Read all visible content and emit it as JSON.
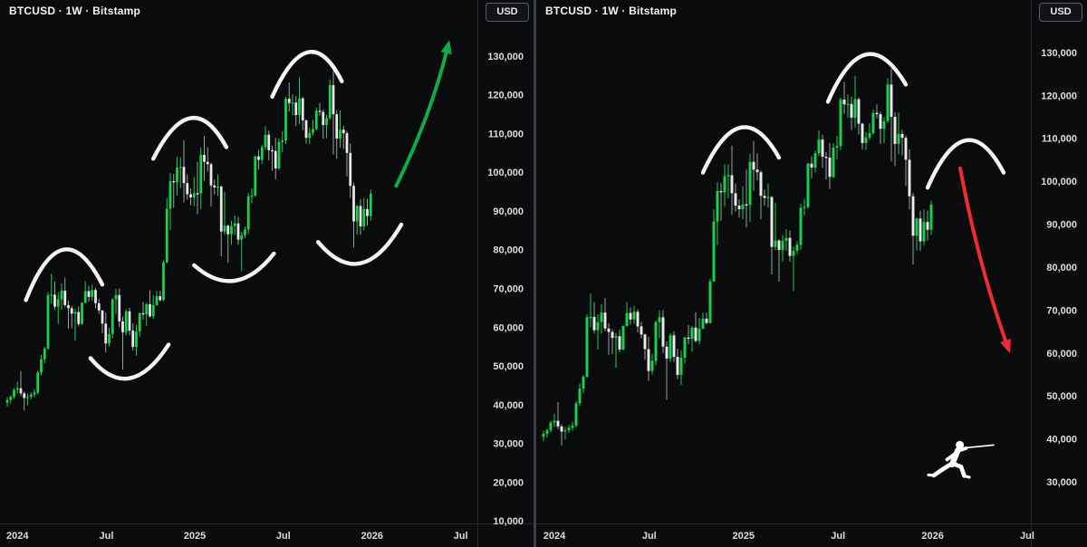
{
  "panels": [
    {
      "title": "BTCUSD · 1W · Bitstamp",
      "currency_label": "USD"
    },
    {
      "title": "BTCUSD · 1W · Bitstamp",
      "currency_label": "USD"
    }
  ],
  "colors": {
    "background": "#0a0b0c",
    "candle_up": "#16d24c",
    "candle_down": "#e9e9e9",
    "wick_down": "#9aa0a6",
    "annotation_white": "#f4f4f4",
    "arrow_up": "#0dab4a",
    "arrow_down": "#ef2b33",
    "axis_text": "#dcdee2",
    "axis_line": "#24262b",
    "divider": "#3c4046",
    "logo_white": "#ffffff"
  },
  "chart_data": {
    "type": "candlestick",
    "symbol": "BTCUSD",
    "interval": "1W",
    "exchange": "Bitstamp",
    "currency": "USD",
    "description": "Two side-by-side weekly BTCUSD candlestick panes with hand-drawn white arc (rounded top/bottom) pattern annotations; left pane shows a bullish green projection arrow, right pane shows a bearish red projection arrow and a white fencer logo.",
    "candles_ohlc_usd": [
      [
        40500,
        41900,
        39500,
        41200
      ],
      [
        41200,
        42400,
        40300,
        42000
      ],
      [
        42000,
        44200,
        41500,
        43800
      ],
      [
        43800,
        45900,
        42800,
        44200
      ],
      [
        44200,
        48600,
        42200,
        42900
      ],
      [
        42900,
        43400,
        38500,
        41700
      ],
      [
        41700,
        42800,
        39900,
        42000
      ],
      [
        42000,
        43200,
        41400,
        42600
      ],
      [
        42600,
        44000,
        41900,
        43100
      ],
      [
        43100,
        48800,
        42600,
        48300
      ],
      [
        48300,
        52900,
        47600,
        51700
      ],
      [
        51700,
        54900,
        50600,
        54500
      ],
      [
        54500,
        69000,
        54200,
        68300
      ],
      [
        68300,
        73800,
        66000,
        68400
      ],
      [
        68400,
        71800,
        64500,
        65300
      ],
      [
        65300,
        69000,
        60800,
        67200
      ],
      [
        67200,
        71300,
        64500,
        69400
      ],
      [
        69400,
        72800,
        65100,
        65700
      ],
      [
        65700,
        66900,
        59600,
        64900
      ],
      [
        64900,
        65500,
        59700,
        63500
      ],
      [
        63500,
        64700,
        56500,
        63900
      ],
      [
        63900,
        65400,
        60200,
        60800
      ],
      [
        60800,
        66400,
        60600,
        66300
      ],
      [
        66300,
        71900,
        66100,
        69300
      ],
      [
        69300,
        70600,
        66600,
        67800
      ],
      [
        67800,
        71000,
        66800,
        69600
      ],
      [
        69600,
        70200,
        64800,
        66200
      ],
      [
        66200,
        67300,
        63400,
        64300
      ],
      [
        64300,
        64500,
        58400,
        60900
      ],
      [
        60900,
        63800,
        53500,
        55800
      ],
      [
        55800,
        59800,
        55000,
        58200
      ],
      [
        58200,
        67500,
        57100,
        67200
      ],
      [
        67200,
        69900,
        63400,
        68300
      ],
      [
        68300,
        70000,
        60000,
        61500
      ],
      [
        61500,
        62700,
        49100,
        58700
      ],
      [
        58700,
        64600,
        57900,
        64100
      ],
      [
        64100,
        65000,
        57900,
        59100
      ],
      [
        59100,
        61000,
        53900,
        54900
      ],
      [
        54900,
        60600,
        52600,
        58900
      ],
      [
        58900,
        63800,
        57500,
        63600
      ],
      [
        63600,
        66500,
        62000,
        63300
      ],
      [
        63300,
        66300,
        60300,
        65900
      ],
      [
        65900,
        69500,
        62400,
        62800
      ],
      [
        62800,
        68200,
        62100,
        65700
      ],
      [
        65700,
        69400,
        65500,
        68000
      ],
      [
        68000,
        69400,
        66600,
        67000
      ],
      [
        67000,
        77300,
        66800,
        76700
      ],
      [
        76700,
        93400,
        76500,
        90600
      ],
      [
        90600,
        99800,
        85100,
        97700
      ],
      [
        97700,
        99600,
        90800,
        97400
      ],
      [
        97400,
        104000,
        94000,
        101200
      ],
      [
        101200,
        103900,
        96000,
        101400
      ],
      [
        101400,
        108300,
        92200,
        97200
      ],
      [
        97200,
        99500,
        92900,
        94300
      ],
      [
        94300,
        95800,
        91500,
        93500
      ],
      [
        93500,
        98800,
        91200,
        94600
      ],
      [
        94600,
        102700,
        89200,
        94500
      ],
      [
        94500,
        106400,
        90500,
        104500
      ],
      [
        104500,
        109400,
        97800,
        102700
      ],
      [
        102700,
        106500,
        100200,
        102100
      ],
      [
        102100,
        102500,
        91200,
        96600
      ],
      [
        96600,
        98100,
        94300,
        96100
      ],
      [
        96100,
        99500,
        93900,
        96300
      ],
      [
        96300,
        96600,
        78300,
        84700
      ],
      [
        84700,
        95000,
        83900,
        86200
      ],
      [
        86200,
        86500,
        76600,
        84000
      ],
      [
        84000,
        87500,
        81300,
        86100
      ],
      [
        86100,
        88800,
        83800,
        86800
      ],
      [
        86800,
        88500,
        81300,
        82600
      ],
      [
        82600,
        84700,
        74400,
        83800
      ],
      [
        83800,
        86000,
        83000,
        85200
      ],
      [
        85200,
        94700,
        84000,
        93800
      ],
      [
        93800,
        95900,
        92000,
        94000
      ],
      [
        94000,
        104300,
        93600,
        104100
      ],
      [
        104100,
        105800,
        100700,
        103200
      ],
      [
        103200,
        107100,
        102100,
        106500
      ],
      [
        106500,
        111900,
        105800,
        109700
      ],
      [
        109700,
        110800,
        103100,
        105700
      ],
      [
        105700,
        106800,
        100400,
        105500
      ],
      [
        105500,
        108900,
        98200,
        101000
      ],
      [
        101000,
        108800,
        100700,
        107800
      ],
      [
        107800,
        110600,
        105100,
        108200
      ],
      [
        108200,
        119500,
        107300,
        119000
      ],
      [
        119000,
        123200,
        115700,
        117900
      ],
      [
        117900,
        120200,
        114800,
        118000
      ],
      [
        118000,
        119700,
        111900,
        114800
      ],
      [
        114800,
        124500,
        112400,
        119100
      ],
      [
        119100,
        119500,
        110900,
        113400
      ],
      [
        113400,
        113600,
        107400,
        108900
      ],
      [
        108900,
        111500,
        107300,
        110200
      ],
      [
        110200,
        113500,
        109600,
        111200
      ],
      [
        111200,
        116700,
        110800,
        115900
      ],
      [
        115900,
        117900,
        114600,
        115600
      ],
      [
        115600,
        116200,
        108700,
        112200
      ],
      [
        112200,
        114900,
        108800,
        114000
      ],
      [
        114000,
        124000,
        113600,
        122500
      ],
      [
        122500,
        126200,
        104600,
        115000
      ],
      [
        115000,
        116100,
        103500,
        108700
      ],
      [
        108700,
        116000,
        106300,
        111000
      ],
      [
        111000,
        112000,
        106000,
        110100
      ],
      [
        110100,
        110700,
        98900,
        105000
      ],
      [
        105000,
        107400,
        93400,
        96500
      ],
      [
        96500,
        97300,
        80600,
        87300
      ],
      [
        87300,
        91500,
        83900,
        91300
      ],
      [
        91300,
        93100,
        83800,
        86000
      ],
      [
        86000,
        93400,
        85000,
        90500
      ],
      [
        90500,
        93200,
        86200,
        88700
      ],
      [
        88700,
        95500,
        87500,
        94500
      ]
    ],
    "panels": [
      {
        "id": "bullish-scenario",
        "ylim_usd": [
          9300,
          144500
        ],
        "xlim_weeks": [
          -2.13,
          138.4
        ],
        "price_ticks": [
          130000,
          120000,
          110000,
          100000,
          90000,
          80000,
          70000,
          60000,
          50000,
          40000,
          30000,
          20000,
          10000
        ],
        "time_ticks": [
          {
            "week": 3,
            "label": "2024"
          },
          {
            "week": 29.2,
            "label": "Jul"
          },
          {
            "week": 55.2,
            "label": "2025"
          },
          {
            "week": 81.3,
            "label": "Jul"
          },
          {
            "week": 107.4,
            "label": "2026"
          },
          {
            "week": 133.5,
            "label": "Jul"
          }
        ],
        "annotations": [
          {
            "name": "top-arc-2024",
            "type": "arc",
            "from": [
              5.5,
              67000
            ],
            "apex": [
              16.5,
              80000
            ],
            "to": [
              28,
              71000
            ]
          },
          {
            "name": "bottom-arc-2024",
            "type": "arc",
            "from": [
              24.5,
              52000
            ],
            "apex": [
              36,
              46800
            ],
            "to": [
              47.5,
              55500
            ]
          },
          {
            "name": "top-arc-early-2025",
            "type": "arc",
            "from": [
              43,
              103500
            ],
            "apex": [
              54,
              114000
            ],
            "to": [
              64.5,
              106500
            ]
          },
          {
            "name": "bottom-arc-2025",
            "type": "arc",
            "from": [
              55,
              76000
            ],
            "apex": [
              67,
              72000
            ],
            "to": [
              78.5,
              79000
            ]
          },
          {
            "name": "top-arc-late-2025",
            "type": "arc",
            "from": [
              78,
              119500
            ],
            "apex": [
              88.5,
              131000
            ],
            "to": [
              98.5,
              123500
            ]
          },
          {
            "name": "bottom-arc-late-2025",
            "type": "arc",
            "from": [
              91.5,
              82000
            ],
            "apex": [
              104,
              76500
            ],
            "to": [
              116,
              86500
            ]
          },
          {
            "name": "bullish-projection-arrow",
            "type": "arrow",
            "color_key": "arrow_up",
            "from": [
              114.5,
              96500
            ],
            "to": [
              130,
              133500
            ],
            "bend": 9
          }
        ]
      },
      {
        "id": "bearish-scenario",
        "ylim_usd": [
          20300,
          142200
        ],
        "xlim_weeks": [
          -2,
          134.5
        ],
        "price_ticks": [
          130000,
          120000,
          110000,
          100000,
          90000,
          80000,
          70000,
          60000,
          50000,
          40000,
          30000
        ],
        "time_ticks": [
          {
            "week": 3,
            "label": "2024"
          },
          {
            "week": 29.2,
            "label": "Jul"
          },
          {
            "week": 55.2,
            "label": "2025"
          },
          {
            "week": 81.3,
            "label": "Jul"
          },
          {
            "week": 107.4,
            "label": "2026"
          },
          {
            "week": 133.5,
            "label": "Jul"
          }
        ],
        "annotations": [
          {
            "name": "top-arc-early-2025",
            "type": "arc",
            "from": [
              44,
              102000
            ],
            "apex": [
              54.5,
              112500
            ],
            "to": [
              65,
              105500
            ]
          },
          {
            "name": "top-arc-late-2025",
            "type": "arc",
            "from": [
              78.5,
              118500
            ],
            "apex": [
              89,
              129500
            ],
            "to": [
              100,
              122500
            ]
          },
          {
            "name": "projection-top-arc",
            "type": "arc",
            "from": [
              106,
              98500
            ],
            "apex": [
              116.5,
              109500
            ],
            "to": [
              127,
              102000
            ]
          },
          {
            "name": "bearish-projection-arrow",
            "type": "arrow",
            "color_key": "arrow_down",
            "from": [
              115,
              103000
            ],
            "to": [
              128.5,
              60500
            ],
            "bend": 8
          },
          {
            "name": "fencer-logo",
            "type": "logo",
            "at": [
              112.75,
              35500
            ]
          }
        ]
      }
    ]
  }
}
